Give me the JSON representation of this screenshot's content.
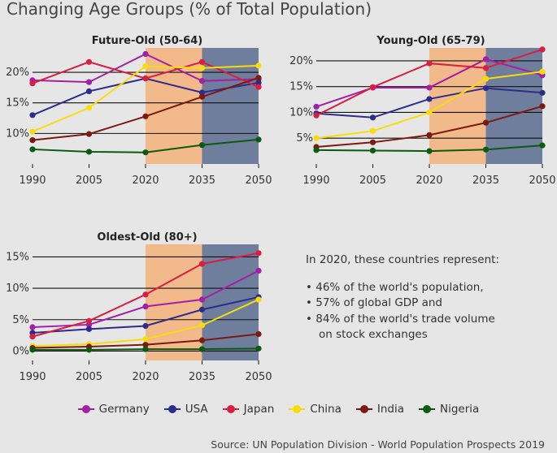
{
  "title": "Changing Age Groups (% of Total Population)",
  "note": {
    "heading": "In 2020, these countries represent:",
    "bullets": [
      "• 46% of the world's population,",
      "• 57% of global GDP and",
      "• 84% of the world's trade volume"
    ],
    "continuation": "on stock exchanges"
  },
  "source": "Source: UN Population Division - World Population Prospects 2019",
  "colors": {
    "background": "#e6e6e6",
    "shade_2020_2035": "#f2b98a",
    "shade_2035_2050": "#6e7e9c",
    "Germany": "#a21fa6",
    "USA": "#2d2c8a",
    "Japan": "#d81f43",
    "China": "#f8dc0c",
    "India": "#7b1a13",
    "Nigeria": "#0a5a10"
  },
  "chart_data": [
    {
      "type": "line",
      "title": "Future-Old (50-64)",
      "x": [
        1990,
        2005,
        2020,
        2035,
        2050
      ],
      "ylim": [
        5,
        24
      ],
      "yticks": [
        10,
        15,
        20
      ],
      "ytick_labels": [
        "10%",
        "15%",
        "20%"
      ],
      "shaded_ranges": [
        [
          2020,
          2035
        ],
        [
          2035,
          2050
        ]
      ],
      "grid": "horizontal",
      "series": [
        {
          "name": "Germany",
          "values": [
            18.7,
            18.4,
            23.0,
            18.6,
            18.9
          ]
        },
        {
          "name": "USA",
          "values": [
            13.0,
            16.9,
            19.0,
            16.7,
            18.3
          ]
        },
        {
          "name": "Japan",
          "values": [
            18.2,
            21.7,
            19.0,
            21.7,
            17.6
          ]
        },
        {
          "name": "China",
          "values": [
            10.3,
            14.2,
            21.0,
            20.7,
            21.1
          ]
        },
        {
          "name": "India",
          "values": [
            8.9,
            9.9,
            12.8,
            16.0,
            19.1
          ]
        },
        {
          "name": "Nigeria",
          "values": [
            7.4,
            7.0,
            6.9,
            8.1,
            9.0
          ]
        }
      ]
    },
    {
      "type": "line",
      "title": "Young-Old (65-79)",
      "x": [
        1990,
        2005,
        2020,
        2035,
        2050
      ],
      "ylim": [
        0,
        22.5
      ],
      "yticks": [
        5,
        10,
        15,
        20
      ],
      "ytick_labels": [
        "5%",
        "10%",
        "15%",
        "20%"
      ],
      "shaded_ranges": [
        [
          2020,
          2035
        ],
        [
          2035,
          2050
        ]
      ],
      "grid": "horizontal",
      "series": [
        {
          "name": "Germany",
          "values": [
            11.1,
            14.8,
            14.8,
            20.3,
            17.2
          ]
        },
        {
          "name": "USA",
          "values": [
            9.8,
            9.0,
            12.6,
            14.7,
            13.8
          ]
        },
        {
          "name": "Japan",
          "values": [
            9.4,
            14.9,
            19.5,
            18.6,
            22.2
          ]
        },
        {
          "name": "China",
          "values": [
            5.0,
            6.4,
            10.0,
            16.5,
            17.9
          ]
        },
        {
          "name": "India",
          "values": [
            3.3,
            4.2,
            5.6,
            8.0,
            11.2
          ]
        },
        {
          "name": "Nigeria",
          "values": [
            2.7,
            2.6,
            2.5,
            2.8,
            3.6
          ]
        }
      ]
    },
    {
      "type": "line",
      "title": "Oldest-Old (80+)",
      "x": [
        1990,
        2005,
        2020,
        2035,
        2050
      ],
      "ylim": [
        -1.5,
        17
      ],
      "yticks": [
        0,
        5,
        10,
        15
      ],
      "ytick_labels": [
        "0%",
        "5%",
        "10%",
        "15%"
      ],
      "shaded_ranges": [
        [
          2020,
          2035
        ],
        [
          2035,
          2050
        ]
      ],
      "grid": "horizontal",
      "series": [
        {
          "name": "Germany",
          "values": [
            3.8,
            4.2,
            7.1,
            8.2,
            12.8
          ]
        },
        {
          "name": "USA",
          "values": [
            2.9,
            3.5,
            4.0,
            6.6,
            8.6
          ]
        },
        {
          "name": "Japan",
          "values": [
            2.3,
            4.8,
            9.0,
            13.9,
            15.6
          ]
        },
        {
          "name": "China",
          "values": [
            0.8,
            1.1,
            1.9,
            4.1,
            8.2
          ]
        },
        {
          "name": "India",
          "values": [
            0.5,
            0.7,
            1.0,
            1.7,
            2.7
          ]
        },
        {
          "name": "Nigeria",
          "values": [
            0.2,
            0.2,
            0.3,
            0.3,
            0.4
          ]
        }
      ]
    }
  ],
  "legend": {
    "placement": "bottom",
    "items": [
      "Germany",
      "USA",
      "Japan",
      "China",
      "India",
      "Nigeria"
    ]
  }
}
